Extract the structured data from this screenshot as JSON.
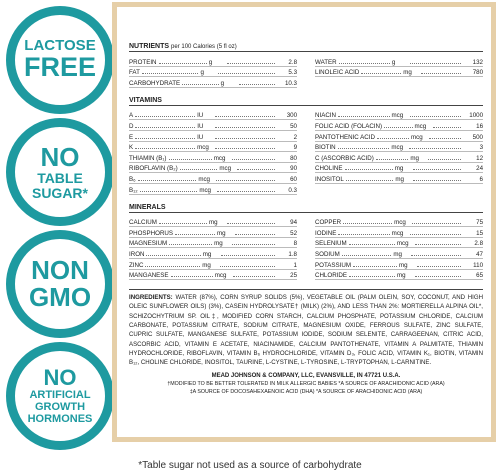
{
  "badges": [
    {
      "lines": [
        "LACTOSE",
        "FREE"
      ]
    },
    {
      "lines": [
        "NO",
        "TABLE",
        "SUGAR*"
      ]
    },
    {
      "lines": [
        "NON",
        "GMO"
      ]
    },
    {
      "lines": [
        "NO",
        "ARTIFICIAL",
        "GROWTH",
        "HORMONES"
      ]
    }
  ],
  "panel": {
    "nutrients": {
      "title": "NUTRIENTS",
      "subtitle": "per 100 Calories (5 fl oz)",
      "left": [
        {
          "name": "PROTEIN",
          "unit": "g",
          "value": 2.8
        },
        {
          "name": "FAT",
          "unit": "g",
          "value": 5.3
        },
        {
          "name": "CARBOHYDRATE",
          "unit": "g",
          "value": 10.3
        }
      ],
      "right": [
        {
          "name": "WATER",
          "unit": "g",
          "value": 132
        },
        {
          "name": "LINOLEIC ACID",
          "unit": "mg",
          "value": 780
        }
      ]
    },
    "vitamins": {
      "title": "VITAMINS",
      "left": [
        {
          "name": "A",
          "unit": "IU",
          "value": 300
        },
        {
          "name": "D",
          "unit": "IU",
          "value": 50
        },
        {
          "name": "E",
          "unit": "IU",
          "value": 2
        },
        {
          "name": "K",
          "unit": "mcg",
          "value": 9
        },
        {
          "name": "THIAMIN (B₁)",
          "unit": "mcg",
          "value": 80
        },
        {
          "name": "RIBOFLAVIN (B₂)",
          "unit": "mcg",
          "value": 90
        },
        {
          "name": "B₆",
          "unit": "mcg",
          "value": 60
        },
        {
          "name": "B₁₂",
          "unit": "mcg",
          "value": 0.3
        }
      ],
      "right": [
        {
          "name": "NIACIN",
          "unit": "mcg",
          "value": 1000
        },
        {
          "name": "FOLIC ACID (FOLACIN)",
          "unit": "mcg",
          "value": 16
        },
        {
          "name": "PANTOTHENIC ACID",
          "unit": "mcg",
          "value": 500
        },
        {
          "name": "BIOTIN",
          "unit": "mcg",
          "value": 3
        },
        {
          "name": "C (ASCORBIC ACID)",
          "unit": "mg",
          "value": 12
        },
        {
          "name": "CHOLINE",
          "unit": "mg",
          "value": 24
        },
        {
          "name": "INOSITOL",
          "unit": "mg",
          "value": 6
        }
      ]
    },
    "minerals": {
      "title": "MINERALS",
      "left": [
        {
          "name": "CALCIUM",
          "unit": "mg",
          "value": 94
        },
        {
          "name": "PHOSPHORUS",
          "unit": "mg",
          "value": 52
        },
        {
          "name": "MAGNESIUM",
          "unit": "mg",
          "value": 8
        },
        {
          "name": "IRON",
          "unit": "mg",
          "value": 1.8
        },
        {
          "name": "ZINC",
          "unit": "mg",
          "value": 1
        },
        {
          "name": "MANGANESE",
          "unit": "mcg",
          "value": 25
        }
      ],
      "right": [
        {
          "name": "COPPER",
          "unit": "mcg",
          "value": 75
        },
        {
          "name": "IODINE",
          "unit": "mcg",
          "value": 15
        },
        {
          "name": "SELENIUM",
          "unit": "mcg",
          "value": 2.8
        },
        {
          "name": "SODIUM",
          "unit": "mg",
          "value": 47
        },
        {
          "name": "POTASSIUM",
          "unit": "mg",
          "value": 110
        },
        {
          "name": "CHLORIDE",
          "unit": "mg",
          "value": 65
        }
      ]
    },
    "ingredients": {
      "label": "INGREDIENTS:",
      "text": "WATER (87%), CORN SYRUP SOLIDS (5%), VEGETABLE OIL (PALM OLEIN, SOY, COCONUT, AND HIGH OLEIC SUNFLOWER OILS) (3%), CASEIN HYDROLYSATE† (MILK) (2%), AND LESS THAN 2%: MORTIERELLA ALPINA OIL*, SCHIZOCHYTRIUM SP. OIL‡, MODIFIED CORN STARCH, CALCIUM PHOSPHATE, POTASSIUM CHLORIDE, CALCIUM CARBONATE, POTASSIUM CITRATE, SODIUM CITRATE, MAGNESIUM OXIDE, FERROUS SULFATE, ZINC SULFATE, CUPRIC SULFATE, MANGANESE SULFATE, POTASSIUM IODIDE, SODIUM SELENITE, CARRAGEENAN, CITRIC ACID, ASCORBIC ACID, VITAMIN E ACETATE, NIACINAMIDE, CALCIUM PANTOTHENATE, VITAMIN A PALMITATE, THIAMIN HYDROCHLORIDE, RIBOFLAVIN, VITAMIN B₆ HYDROCHLORIDE, VITAMIN D₃, FOLIC ACID, VITAMIN K₁, BIOTIN, VITAMIN B₁₂, CHOLINE CHLORIDE, INOSITOL, TAURINE, L-CYSTINE, L-TYROSINE, L-TRYPTOPHAN, L-CARNITINE."
    },
    "manufacturer": "MEAD JOHNSON & COMPANY, LLC, EVANSVILLE, IN 47721 U.S.A.",
    "footnotes": [
      "†MODIFIED TO BE BETTER TOLERATED IN MILK ALLERGIC BABIES *A SOURCE OF ARACHIDONIC ACID (ARA)",
      "‡A SOURCE OF DOCOSAHEXAENOIC ACID (DHA) *A SOURCE OF ARACHIDONIC ACID (ARA)"
    ]
  },
  "footnote": "*Table sugar not used as a source of carbohydrate"
}
